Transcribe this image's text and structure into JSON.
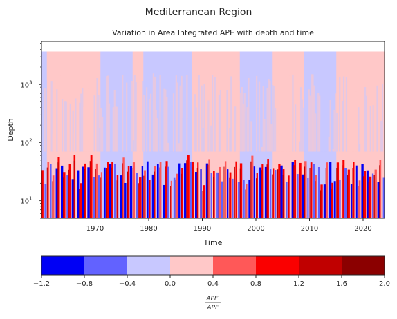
{
  "figure": {
    "suptitle": "Mediterranean Region"
  },
  "chart_data": {
    "type": "heatmap",
    "title": "Variation in Area Integrated APE with depth and time",
    "xlabel": "Time",
    "ylabel": "Depth",
    "x_ticks": [
      "1970",
      "1980",
      "1990",
      "2000",
      "2010",
      "2020"
    ],
    "xlim": [
      1960,
      2024
    ],
    "y_scale": "log",
    "ylim": [
      5,
      5500
    ],
    "y_ticks": [
      {
        "base": "10",
        "exp": "1"
      },
      {
        "base": "10",
        "exp": "2"
      },
      {
        "base": "10",
        "exp": "3"
      }
    ],
    "depth_top": 3700,
    "depth_mixed_layer_max": 70,
    "colorbar": {
      "label_numerator": "APE′",
      "label_denominator": "APE",
      "levels": [
        -1.2,
        -0.8,
        -0.4,
        0.0,
        0.4,
        0.8,
        1.2,
        1.6,
        2.0
      ],
      "tick_labels": [
        "−1.2",
        "−0.8",
        "−0.4",
        "0.0",
        "0.4",
        "0.8",
        "1.2",
        "1.6",
        "2.0"
      ],
      "colors": [
        "#0000f5",
        "#6262ff",
        "#c8c8ff",
        "#ffc8c8",
        "#ff5858",
        "#fa0000",
        "#c00000",
        "#8b0000"
      ]
    },
    "deep_regime": [
      {
        "from": 1960,
        "to": 1961,
        "level": "-0.4 to 0.0"
      },
      {
        "from": 1961,
        "to": 1971,
        "level": "0.0 to 0.4"
      },
      {
        "from": 1971,
        "to": 1977,
        "level": "-0.4 to 0.0"
      },
      {
        "from": 1977,
        "to": 1979,
        "level": "0.0 to 0.4"
      },
      {
        "from": 1979,
        "to": 1988,
        "level": "-0.4 to 0.0"
      },
      {
        "from": 1988,
        "to": 1997,
        "level": "0.0 to 0.4"
      },
      {
        "from": 1997,
        "to": 2003,
        "level": "-0.4 to 0.0"
      },
      {
        "from": 2003,
        "to": 2009,
        "level": "0.0 to 0.4"
      },
      {
        "from": 2009,
        "to": 2015,
        "level": "-0.4 to 0.0"
      },
      {
        "from": 2015,
        "to": 2024,
        "level": "0.0 to 0.4"
      }
    ],
    "grid": false,
    "legend": "colorbar-bottom"
  }
}
